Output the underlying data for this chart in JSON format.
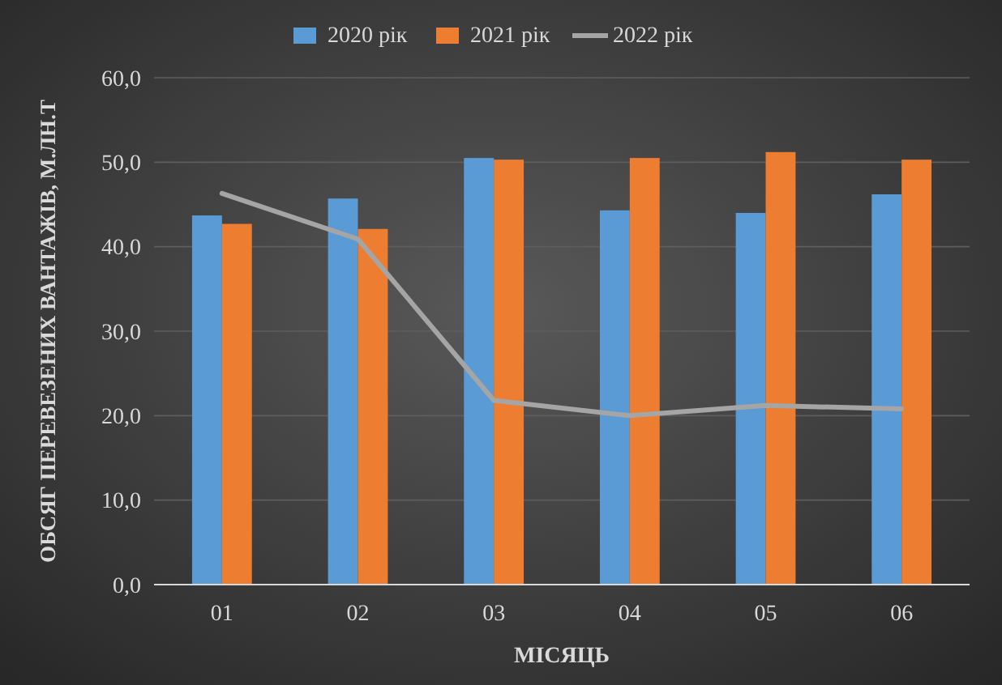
{
  "chart_data": {
    "type": "bar",
    "xlabel": "МІСЯЦЬ",
    "ylabel": "ОБСЯГ ПЕРЕВЕЗЕНИХ ВАНТАЖІВ, М.ЛН.Т",
    "categories": [
      "01",
      "02",
      "03",
      "04",
      "05",
      "06"
    ],
    "series": [
      {
        "name": "2020 рік",
        "color": "#5b9bd5",
        "values": [
          43.7,
          45.7,
          50.5,
          44.3,
          44.0,
          46.2
        ]
      },
      {
        "name": "2021 рік",
        "color": "#ed7d31",
        "values": [
          42.7,
          42.1,
          50.3,
          50.5,
          51.2,
          50.3
        ]
      },
      {
        "name": "2022 рік",
        "type": "line",
        "color": "#a5a5a5",
        "values": [
          46.3,
          40.9,
          21.8,
          20.0,
          21.2,
          20.8
        ]
      }
    ],
    "ylim": [
      0,
      60
    ],
    "yticks": [
      {
        "value": 0,
        "label": "0,0"
      },
      {
        "value": 10,
        "label": "10,0"
      },
      {
        "value": 20,
        "label": "20,0"
      },
      {
        "value": 30,
        "label": "30,0"
      },
      {
        "value": 40,
        "label": "40,0"
      },
      {
        "value": 50,
        "label": "50,0"
      },
      {
        "value": 60,
        "label": "60,0"
      }
    ],
    "grid": "y",
    "legend": "top"
  }
}
